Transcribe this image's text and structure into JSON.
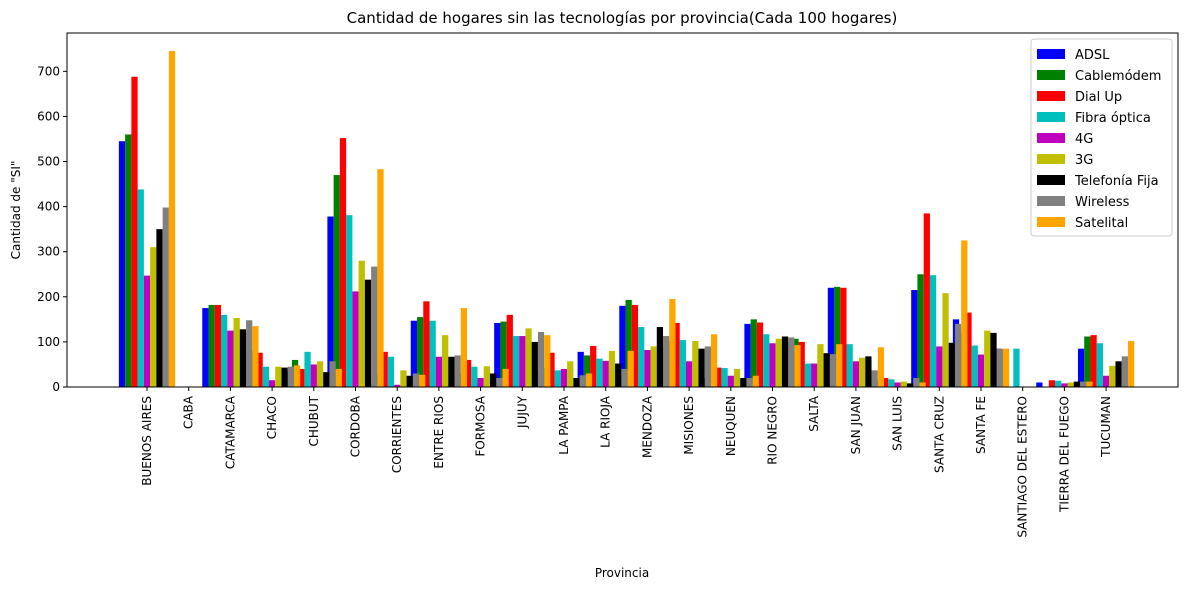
{
  "chart_data": {
    "type": "bar",
    "title": "Cantidad de hogares sin las tecnologías por provincia(Cada 100 hogares)",
    "xlabel": "Provincia",
    "ylabel": "Cantidad de \"SI\"",
    "ylim": [
      0,
      785
    ],
    "yticks": [
      0,
      100,
      200,
      300,
      400,
      500,
      600,
      700
    ],
    "grid": false,
    "legend_position": "top-right",
    "categories": [
      "BUENOS AIRES",
      "CABA",
      "CATAMARCA",
      "CHACO",
      "CHUBUT",
      "CORDOBA",
      "CORRIENTES",
      "ENTRE RIOS",
      "FORMOSA",
      "JUJUY",
      "LA PAMPA",
      "LA RIOJA",
      "MENDOZA",
      "MISIONES",
      "NEUQUEN",
      "RIO NEGRO",
      "SALTA",
      "SAN JUAN",
      "SAN LUIS",
      "SANTA CRUZ",
      "SANTA FE",
      "SANTIAGO DEL ESTERO",
      "TIERRA DEL FUEGO",
      "TUCUMAN"
    ],
    "series": [
      {
        "name": "ADSL",
        "color": "#0000ff",
        "values": [
          545,
          0,
          175,
          75,
          35,
          378,
          8,
          147,
          20,
          142,
          37,
          78,
          180,
          87,
          20,
          140,
          100,
          220,
          8,
          215,
          150,
          85,
          10,
          85
        ]
      },
      {
        "name": "Cablemódem",
        "color": "#008000",
        "values": [
          560,
          0,
          182,
          80,
          60,
          470,
          30,
          155,
          30,
          145,
          42,
          70,
          193,
          102,
          25,
          150,
          107,
          222,
          15,
          250,
          120,
          83,
          0,
          112
        ]
      },
      {
        "name": "Dial Up",
        "color": "#ff0000",
        "values": [
          688,
          0,
          182,
          76,
          40,
          552,
          78,
          190,
          60,
          160,
          76,
          91,
          182,
          142,
          43,
          143,
          100,
          220,
          20,
          385,
          165,
          0,
          15,
          115
        ]
      },
      {
        "name": "Fibra óptica",
        "color": "#00bfbf",
        "values": [
          438,
          0,
          160,
          45,
          78,
          381,
          67,
          147,
          45,
          113,
          37,
          63,
          133,
          104,
          42,
          117,
          52,
          95,
          17,
          248,
          92,
          85,
          14,
          97
        ]
      },
      {
        "name": "4G",
        "color": "#bf00bf",
        "values": [
          247,
          0,
          125,
          15,
          50,
          212,
          5,
          67,
          20,
          113,
          40,
          58,
          82,
          57,
          25,
          97,
          52,
          57,
          10,
          90,
          72,
          0,
          8,
          25
        ]
      },
      {
        "name": "3G",
        "color": "#bfbf00",
        "values": [
          310,
          0,
          153,
          45,
          57,
          280,
          37,
          115,
          46,
          130,
          57,
          80,
          90,
          102,
          40,
          107,
          95,
          65,
          12,
          208,
          125,
          0,
          10,
          47
        ]
      },
      {
        "name": "Telefonía Fija",
        "color": "#000000",
        "values": [
          350,
          0,
          128,
          43,
          33,
          238,
          25,
          67,
          30,
          100,
          20,
          52,
          133,
          85,
          20,
          112,
          75,
          68,
          8,
          98,
          120,
          0,
          12,
          57
        ]
      },
      {
        "name": "Wireless",
        "color": "#808080",
        "values": [
          398,
          0,
          148,
          45,
          57,
          267,
          30,
          70,
          20,
          122,
          26,
          40,
          113,
          90,
          20,
          110,
          73,
          37,
          20,
          140,
          85,
          0,
          12,
          68
        ]
      },
      {
        "name": "Satelital",
        "color": "#ffa500",
        "values": [
          745,
          0,
          135,
          48,
          40,
          483,
          27,
          175,
          40,
          115,
          30,
          80,
          195,
          117,
          25,
          93,
          95,
          88,
          10,
          325,
          85,
          0,
          12,
          102
        ]
      }
    ]
  }
}
